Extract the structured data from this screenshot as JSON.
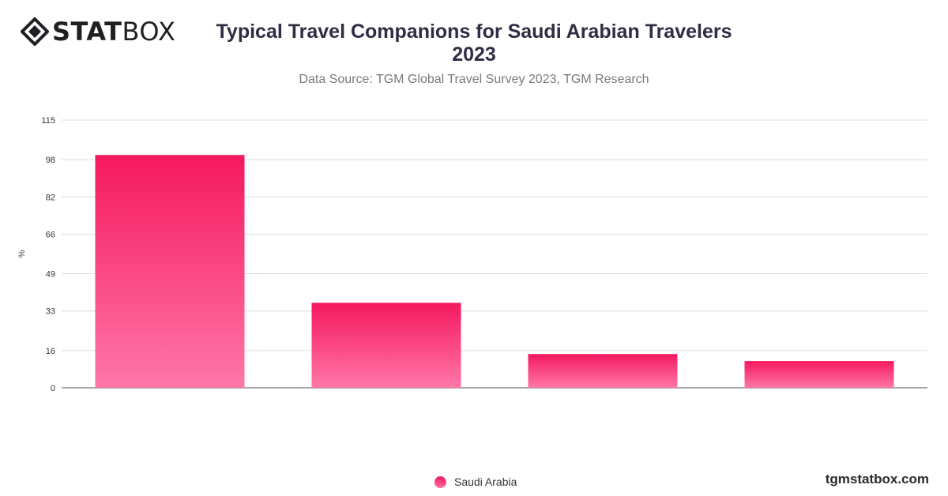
{
  "logo": {
    "bold": "STAT",
    "light": "BOX"
  },
  "title_line1": "Typical Travel Companions for Saudi Arabian Travelers",
  "title_line2": "2023",
  "subtitle": "Data Source: TGM Global Travel Survey 2023, TGM Research",
  "watermark": "tgmstatbox.com",
  "colors": {
    "bar_top": "#f5185f",
    "bar_bottom": "#ff77a8",
    "grid": "#dddddd",
    "text": "#2d2d44"
  },
  "chart_data": {
    "type": "bar",
    "categories": [
      "",
      "",
      "",
      ""
    ],
    "series": [
      {
        "name": "Saudi Arabia",
        "values": [
          100,
          36.5,
          14.5,
          11.5
        ]
      }
    ],
    "ylabel": "%",
    "ylim": [
      0,
      115
    ],
    "yticks": [
      0,
      16,
      33,
      49,
      66,
      82,
      98,
      115
    ],
    "grid": true,
    "legend_position": "bottom-center"
  }
}
